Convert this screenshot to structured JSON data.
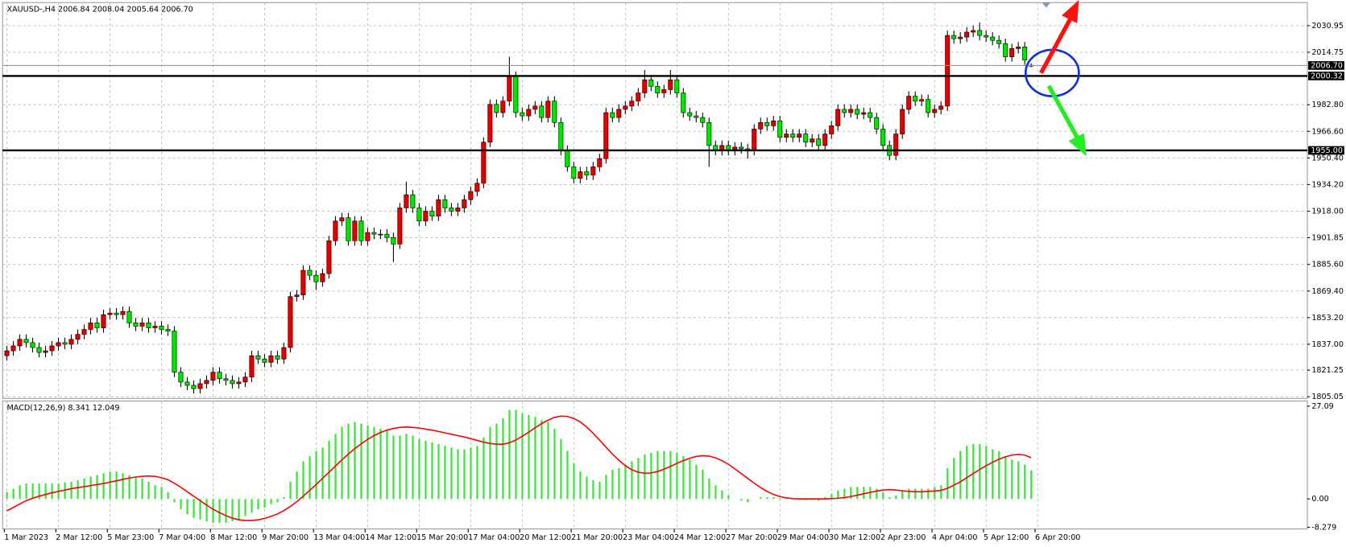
{
  "chart_data": [
    {
      "type": "candlestick",
      "title": "XAUUSD-,H4  2006.84 2008.04 2005.64 2006.70",
      "up_color": "#e00000",
      "down_color": "#00e600",
      "categories": [
        "1 Mar 2023",
        null,
        null,
        null,
        null,
        null,
        null,
        null,
        "2 Mar 12:00",
        null,
        null,
        null,
        null,
        null,
        null,
        null,
        "5 Mar 23:00",
        null,
        null,
        null,
        null,
        null,
        null,
        null,
        "7 Mar 04:00",
        null,
        null,
        null,
        null,
        null,
        null,
        null,
        "8 Mar 12:00",
        null,
        null,
        null,
        null,
        null,
        null,
        null,
        "9 Mar 20:00",
        null,
        null,
        null,
        null,
        null,
        null,
        null,
        "13 Mar 04:00",
        null,
        null,
        null,
        null,
        null,
        null,
        null,
        "14 Mar 12:00",
        null,
        null,
        null,
        null,
        null,
        null,
        null,
        "15 Mar 20:00",
        null,
        null,
        null,
        null,
        null,
        null,
        null,
        "17 Mar 04:00",
        null,
        null,
        null,
        null,
        null,
        null,
        null,
        "20 Mar 12:00",
        null,
        null,
        null,
        null,
        null,
        null,
        null,
        "21 Mar 20:00",
        null,
        null,
        null,
        null,
        null,
        null,
        null,
        "23 Mar 04:00",
        null,
        null,
        null,
        null,
        null,
        null,
        null,
        "24 Mar 12:00",
        null,
        null,
        null,
        null,
        null,
        null,
        null,
        "27 Mar 20:00",
        null,
        null,
        null,
        null,
        null,
        null,
        null,
        "29 Mar 04:00",
        null,
        null,
        null,
        null,
        null,
        null,
        null,
        "30 Mar 12:00",
        null,
        null,
        null,
        null,
        null,
        null,
        null,
        "2 Apr 23:00",
        null,
        null,
        null,
        null,
        null,
        null,
        null,
        "4 Apr 04:00",
        null,
        null,
        null,
        null,
        null,
        null,
        null,
        "5 Apr 12:00",
        null,
        null,
        null,
        null,
        null,
        null,
        null,
        "6 Apr 20:00"
      ],
      "open": [
        1830,
        1833,
        1836,
        1840,
        1838,
        1835,
        1832,
        1833,
        1836,
        1838,
        1837,
        1840,
        1843,
        1846,
        1850,
        1847,
        1855,
        1856,
        1855,
        1857,
        1850,
        1848,
        1850,
        1847,
        1848,
        1846,
        1845,
        1820,
        1814,
        1812,
        1810,
        1813,
        1815,
        1820,
        1816,
        1815,
        1813,
        1814,
        1817,
        1830,
        1828,
        1826,
        1830,
        1828,
        1835,
        1866,
        1867,
        1882,
        1879,
        1875,
        1880,
        1900,
        1912,
        1914,
        1900,
        1912,
        1900,
        1905,
        1904,
        1904,
        1902,
        1898,
        1920,
        1928,
        1920,
        1912,
        1918,
        1915,
        1925,
        1920,
        1918,
        1920,
        1925,
        1930,
        1935,
        1960,
        1983,
        1978,
        1985,
        2000,
        1978,
        1976,
        1980,
        1982,
        1975,
        1985,
        1972,
        1955,
        1945,
        1938,
        1942,
        1940,
        1945,
        1950,
        1978,
        1975,
        1980,
        1982,
        1985,
        1990,
        1998,
        1994,
        1990,
        1992,
        1998,
        1990,
        1978,
        1976,
        1975,
        1972,
        1958,
        1955,
        1958,
        1955,
        1957,
        1956,
        1955,
        1968,
        1972,
        1970,
        1973,
        1963,
        1965,
        1963,
        1965,
        1960,
        1962,
        1958,
        1965,
        1970,
        1980,
        1978,
        1980,
        1977,
        1978,
        1975,
        1968,
        1958,
        1952,
        1965,
        1980,
        1988,
        1985,
        1986,
        1978,
        1980,
        1982,
        2025,
        2023,
        2024,
        2027,
        2028,
        2025,
        2024,
        2022,
        2020,
        2012,
        2017,
        2018,
        2006.84,
        null
      ],
      "high": [
        1836,
        1839,
        1843,
        1843,
        1841,
        1838,
        1836,
        1839,
        1841,
        1841,
        1843,
        1846,
        1849,
        1853,
        1853,
        1858,
        1859,
        1859,
        1860,
        1860,
        1853,
        1853,
        1853,
        1851,
        1851,
        1849,
        1848,
        1823,
        1817,
        1815,
        1816,
        1818,
        1823,
        1823,
        1819,
        1818,
        1817,
        1820,
        1833,
        1833,
        1831,
        1833,
        1833,
        1838,
        1869,
        1870,
        1885,
        1885,
        1882,
        1883,
        1903,
        1915,
        1917,
        1917,
        1915,
        1915,
        1908,
        1908,
        1907,
        1907,
        1905,
        1923,
        1936,
        1931,
        1923,
        1921,
        1921,
        1928,
        1928,
        1923,
        1923,
        1928,
        1933,
        1938,
        1963,
        1986,
        1986,
        1988,
        2012,
        2003,
        1981,
        1983,
        1985,
        1985,
        1988,
        1988,
        1975,
        1958,
        1948,
        1945,
        1945,
        1948,
        1953,
        1981,
        1981,
        1983,
        1985,
        1988,
        1993,
        2004,
        2001,
        1997,
        1995,
        2004,
        2001,
        1993,
        1981,
        1979,
        1978,
        1975,
        1961,
        1961,
        1961,
        1960,
        1960,
        1959,
        1971,
        1975,
        1975,
        1976,
        1976,
        1968,
        1968,
        1968,
        1968,
        1965,
        1965,
        1968,
        1973,
        1983,
        1983,
        1983,
        1983,
        1981,
        1981,
        1978,
        1971,
        1961,
        1968,
        1983,
        1991,
        1991,
        1989,
        1989,
        1983,
        1985,
        2028,
        2028,
        2027,
        2030,
        2031,
        2033,
        2028,
        2027,
        2025,
        2023,
        2020,
        2021,
        2021,
        2008.04,
        null
      ],
      "low": [
        1827,
        1830,
        1833,
        1835,
        1832,
        1829,
        1829,
        1830,
        1833,
        1834,
        1834,
        1837,
        1840,
        1843,
        1844,
        1844,
        1852,
        1852,
        1852,
        1847,
        1845,
        1845,
        1844,
        1844,
        1843,
        1842,
        1817,
        1811,
        1809,
        1807,
        1807,
        1810,
        1812,
        1813,
        1812,
        1810,
        1810,
        1811,
        1814,
        1825,
        1823,
        1823,
        1825,
        1825,
        1832,
        1863,
        1864,
        1876,
        1870,
        1872,
        1877,
        1897,
        1909,
        1897,
        1897,
        1897,
        1897,
        1901,
        1901,
        1899,
        1887,
        1895,
        1917,
        1917,
        1909,
        1909,
        1912,
        1912,
        1917,
        1915,
        1915,
        1917,
        1922,
        1927,
        1932,
        1957,
        1975,
        1975,
        1982,
        1975,
        1973,
        1973,
        1977,
        1972,
        1972,
        1969,
        1952,
        1942,
        1935,
        1935,
        1937,
        1937,
        1942,
        1947,
        1972,
        1972,
        1977,
        1979,
        1982,
        1987,
        1991,
        1987,
        1987,
        1989,
        1987,
        1975,
        1973,
        1972,
        1969,
        1945,
        1952,
        1952,
        1952,
        1952,
        1953,
        1950,
        1952,
        1965,
        1967,
        1967,
        1960,
        1960,
        1960,
        1960,
        1957,
        1957,
        1955,
        1955,
        1962,
        1967,
        1975,
        1975,
        1974,
        1974,
        1972,
        1965,
        1955,
        1949,
        1949,
        1962,
        1977,
        1982,
        1982,
        1975,
        1975,
        1977,
        1979,
        2020,
        2020,
        2021,
        2024,
        2022,
        2021,
        2019,
        2017,
        2009,
        2009,
        2014,
        2007,
        2005.64,
        null
      ],
      "close": [
        1833,
        1836,
        1840,
        1838,
        1835,
        1832,
        1833,
        1836,
        1838,
        1837,
        1840,
        1843,
        1846,
        1850,
        1847,
        1855,
        1856,
        1855,
        1857,
        1850,
        1848,
        1850,
        1847,
        1848,
        1846,
        1845,
        1820,
        1814,
        1812,
        1810,
        1813,
        1815,
        1820,
        1816,
        1815,
        1813,
        1814,
        1817,
        1830,
        1828,
        1826,
        1830,
        1828,
        1835,
        1866,
        1867,
        1882,
        1879,
        1875,
        1880,
        1900,
        1912,
        1914,
        1900,
        1912,
        1900,
        1905,
        1904,
        1904,
        1902,
        1898,
        1920,
        1928,
        1920,
        1912,
        1918,
        1915,
        1925,
        1920,
        1918,
        1920,
        1925,
        1930,
        1935,
        1960,
        1983,
        1978,
        1985,
        2000,
        1978,
        1976,
        1980,
        1982,
        1975,
        1985,
        1972,
        1955,
        1945,
        1938,
        1942,
        1940,
        1945,
        1950,
        1978,
        1975,
        1980,
        1982,
        1985,
        1990,
        1998,
        1994,
        1990,
        1992,
        1998,
        1990,
        1978,
        1976,
        1975,
        1972,
        1958,
        1955,
        1958,
        1955,
        1957,
        1956,
        1955,
        1968,
        1972,
        1970,
        1973,
        1963,
        1965,
        1963,
        1965,
        1960,
        1962,
        1958,
        1965,
        1970,
        1980,
        1978,
        1980,
        1977,
        1978,
        1975,
        1968,
        1958,
        1952,
        1965,
        1980,
        1988,
        1985,
        1986,
        1978,
        1980,
        1982,
        2025,
        2023,
        2024,
        2027,
        2028,
        2025,
        2024,
        2022,
        2020,
        2012,
        2017,
        2018,
        2010,
        2006.7,
        null
      ],
      "ylim": [
        1804,
        2045
      ],
      "yticks": [
        {
          "value": 2030.95,
          "label": "2030.95"
        },
        {
          "value": 2014.75,
          "label": "2014.75"
        },
        {
          "value": 1982.8,
          "label": "1982.80"
        },
        {
          "value": 1966.6,
          "label": "1966.60"
        },
        {
          "value": 1950.4,
          "label": "1950.40"
        },
        {
          "value": 1934.2,
          "label": "1934.20"
        },
        {
          "value": 1918,
          "label": "1918.00"
        },
        {
          "value": 1901.85,
          "label": "1901.85"
        },
        {
          "value": 1885.6,
          "label": "1885.60"
        },
        {
          "value": 1869.4,
          "label": "1869.40"
        },
        {
          "value": 1853.2,
          "label": "1853.20"
        },
        {
          "value": 1837,
          "label": "1837.00"
        },
        {
          "value": 1821.25,
          "label": "1821.25"
        },
        {
          "value": 1805.05,
          "label": "1805.05"
        }
      ],
      "hlines": [
        {
          "value": 2006.7,
          "label": "2006.70",
          "color": "#999999"
        },
        {
          "value": 2000.32,
          "label": "2000.32",
          "color": "#000000"
        },
        {
          "value": 1955,
          "label": "1955.00",
          "color": "#000000"
        }
      ],
      "grid": true
    },
    {
      "type": "macd",
      "title": "MACD(12,26,9) 8.341 12.049",
      "series": [
        {
          "type": "bar",
          "color": "#33ee33",
          "values": [
            2,
            3,
            4,
            4.5,
            4.5,
            4.5,
            4.5,
            4.5,
            4.5,
            4.8,
            5,
            5.5,
            6,
            6.5,
            7,
            7.5,
            8,
            8,
            7.5,
            7,
            6.5,
            6,
            5,
            4,
            3.5,
            2,
            -1,
            -3,
            -4.5,
            -5.5,
            -6,
            -6.5,
            -7,
            -7,
            -7,
            -6.5,
            -6,
            -5,
            -4,
            -3,
            -2.5,
            -1.5,
            -1,
            0.5,
            5,
            8,
            11,
            12.5,
            14,
            15,
            17,
            19,
            21,
            22,
            22.5,
            22,
            21.5,
            21,
            20.5,
            20,
            18.5,
            18.5,
            19,
            18.5,
            17.5,
            17,
            16.5,
            16,
            15.5,
            15,
            14.5,
            14.5,
            15,
            15.5,
            18,
            21,
            22,
            23.5,
            26,
            26,
            25,
            24.5,
            24,
            23,
            22.5,
            20.5,
            17.5,
            14,
            10.5,
            8,
            6.5,
            5.5,
            5,
            7,
            8.5,
            9,
            10,
            11,
            12,
            13,
            13.5,
            14,
            14,
            14,
            13.5,
            12.5,
            11.5,
            10,
            8.5,
            6,
            4,
            2.5,
            1,
            0,
            -0.5,
            -1,
            0,
            0.5,
            0.5,
            0.5,
            0.3,
            0.3,
            0.2,
            0.2,
            -0.3,
            0.2,
            -0.5,
            0.5,
            1.5,
            2.5,
            3,
            3.5,
            3.5,
            3.5,
            3.5,
            3,
            2,
            0.5,
            1,
            2.5,
            3,
            3,
            3,
            3,
            3.5,
            4,
            9,
            12,
            14,
            15.5,
            16,
            16,
            15.5,
            14.5,
            14,
            12.5,
            11.5,
            11,
            10,
            8.341,
            null
          ]
        },
        {
          "type": "line",
          "color": "#ff0000",
          "values": [
            -3.5,
            -2.5,
            -1.5,
            -0.5,
            0.2,
            0.8,
            1.3,
            1.8,
            2.2,
            2.6,
            3,
            3.3,
            3.6,
            3.9,
            4.2,
            4.5,
            4.9,
            5.3,
            5.7,
            6.1,
            6.4,
            6.6,
            6.7,
            6.6,
            6.2,
            5.6,
            4.6,
            3.4,
            2.1,
            0.8,
            -0.5,
            -1.8,
            -3,
            -4,
            -4.9,
            -5.6,
            -6.1,
            -6.3,
            -6.3,
            -6.1,
            -5.7,
            -5.1,
            -4.4,
            -3.4,
            -2.2,
            -0.8,
            0.8,
            2.5,
            4.2,
            6,
            7.8,
            9.6,
            11.4,
            13.1,
            14.7,
            16.1,
            17.4,
            18.5,
            19.4,
            20.1,
            20.6,
            20.9,
            21,
            20.9,
            20.7,
            20.4,
            20.1,
            19.7,
            19.3,
            18.9,
            18.5,
            18.1,
            17.6,
            17.1,
            16.6,
            16.2,
            16,
            16,
            16.4,
            17.2,
            18.3,
            19.5,
            20.8,
            22,
            23,
            23.8,
            24.2,
            24.1,
            23.5,
            22.5,
            21,
            19.2,
            17.2,
            15.1,
            13.1,
            11.3,
            9.7,
            8.5,
            7.8,
            7.5,
            7.6,
            8,
            8.7,
            9.5,
            10.4,
            11.2,
            11.9,
            12.4,
            12.6,
            12.5,
            12,
            11.2,
            10.1,
            8.8,
            7.4,
            6,
            4.6,
            3.3,
            2.2,
            1.3,
            0.7,
            0.3,
            0.1,
            0,
            0,
            0,
            0,
            0,
            0.1,
            0.2,
            0.4,
            0.7,
            1.1,
            1.5,
            1.9,
            2.3,
            2.6,
            2.7,
            2.6,
            2.4,
            2.2,
            2.1,
            2.1,
            2.2,
            2.3,
            2.5,
            3.1,
            4,
            5,
            6.2,
            7.4,
            8.6,
            9.7,
            10.7,
            11.6,
            12.3,
            12.8,
            13,
            12.8,
            12.049,
            null
          ]
        }
      ],
      "ylim": [
        -8.78,
        28.6
      ],
      "yticks": [
        27.09,
        {
          "value": 0,
          "label": "0.00"
        },
        -8.279
      ]
    }
  ]
}
